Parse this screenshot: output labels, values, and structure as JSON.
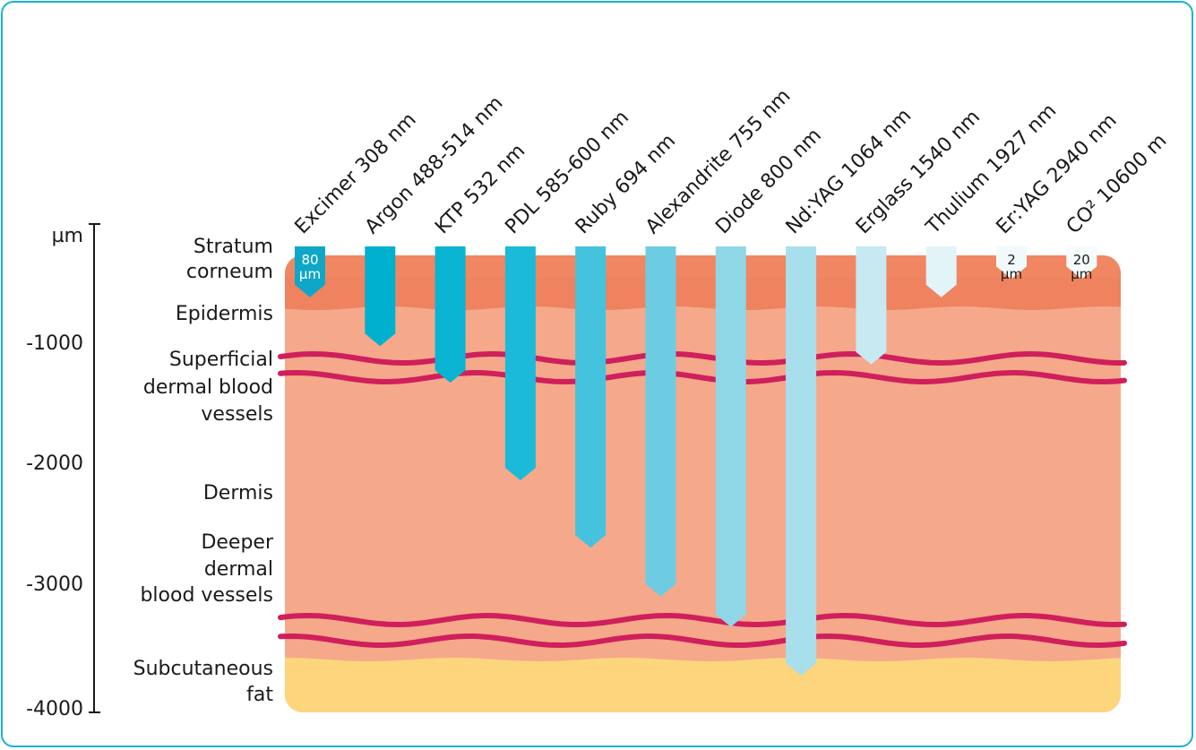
{
  "axis": {
    "unit": "µm",
    "ticks": [
      "-1000",
      "-2000",
      "-3000",
      "-4000"
    ]
  },
  "layers": [
    {
      "key": "stratum",
      "lines": [
        "Stratum",
        "corneum"
      ]
    },
    {
      "key": "epidermis",
      "lines": [
        "Epidermis"
      ]
    },
    {
      "key": "superficial",
      "lines": [
        "Superficial",
        "dermal blood",
        "vessels"
      ]
    },
    {
      "key": "dermis",
      "lines": [
        "Dermis"
      ]
    },
    {
      "key": "deeper",
      "lines": [
        "Deeper",
        "dermal",
        "blood vessels"
      ]
    },
    {
      "key": "fat",
      "lines": [
        "Subcutaneous",
        "fat"
      ]
    }
  ],
  "lasers": [
    {
      "label": "Excimer 308 nm",
      "depth_um": 600,
      "color": "#0fa7c7",
      "note": [
        "80",
        "µm"
      ],
      "note_color": "#ffffff"
    },
    {
      "label": "Argon 488-514 nm",
      "depth_um": 1000,
      "color": "#00b0cf"
    },
    {
      "label": "KTP 532 nm",
      "depth_um": 1300,
      "color": "#08b4d2"
    },
    {
      "label": "PDL 585-600 nm",
      "depth_um": 2100,
      "color": "#1bbad8"
    },
    {
      "label": "Ruby 694 nm",
      "depth_um": 2650,
      "color": "#45c2dd"
    },
    {
      "label": "Alexandrite 755 nm",
      "depth_um": 3050,
      "color": "#6dcce2"
    },
    {
      "label": "Diode 800 nm",
      "depth_um": 3300,
      "color": "#8fd6e7"
    },
    {
      "label": "Nd:YAG 1064 nm",
      "depth_um": 3700,
      "color": "#a9dfec"
    },
    {
      "label": "Erglass 1540 nm",
      "depth_um": 1150,
      "color": "#c7e9f2"
    },
    {
      "label": "Thulium 1927 nm",
      "depth_um": 600,
      "color": "#e2f4f8"
    },
    {
      "label": "Er:YAG 2940 nm",
      "depth_um": 450,
      "color": "#f1f9fb",
      "note": [
        "2",
        "µm"
      ],
      "note_color": "#1a1a1a"
    },
    {
      "label": "CO² 10600 m",
      "depth_um": 450,
      "color": "#f6fbfc",
      "note": [
        "20",
        "µm"
      ],
      "note_color": "#1a1a1a"
    }
  ],
  "colors": {
    "stratum": "#ef825f",
    "epidermis_band": "#f3916a",
    "dermis": "#f6a88b",
    "fat": "#fdd57d",
    "vessel": "#cf1f5c",
    "frame": "#1ab3cf"
  }
}
